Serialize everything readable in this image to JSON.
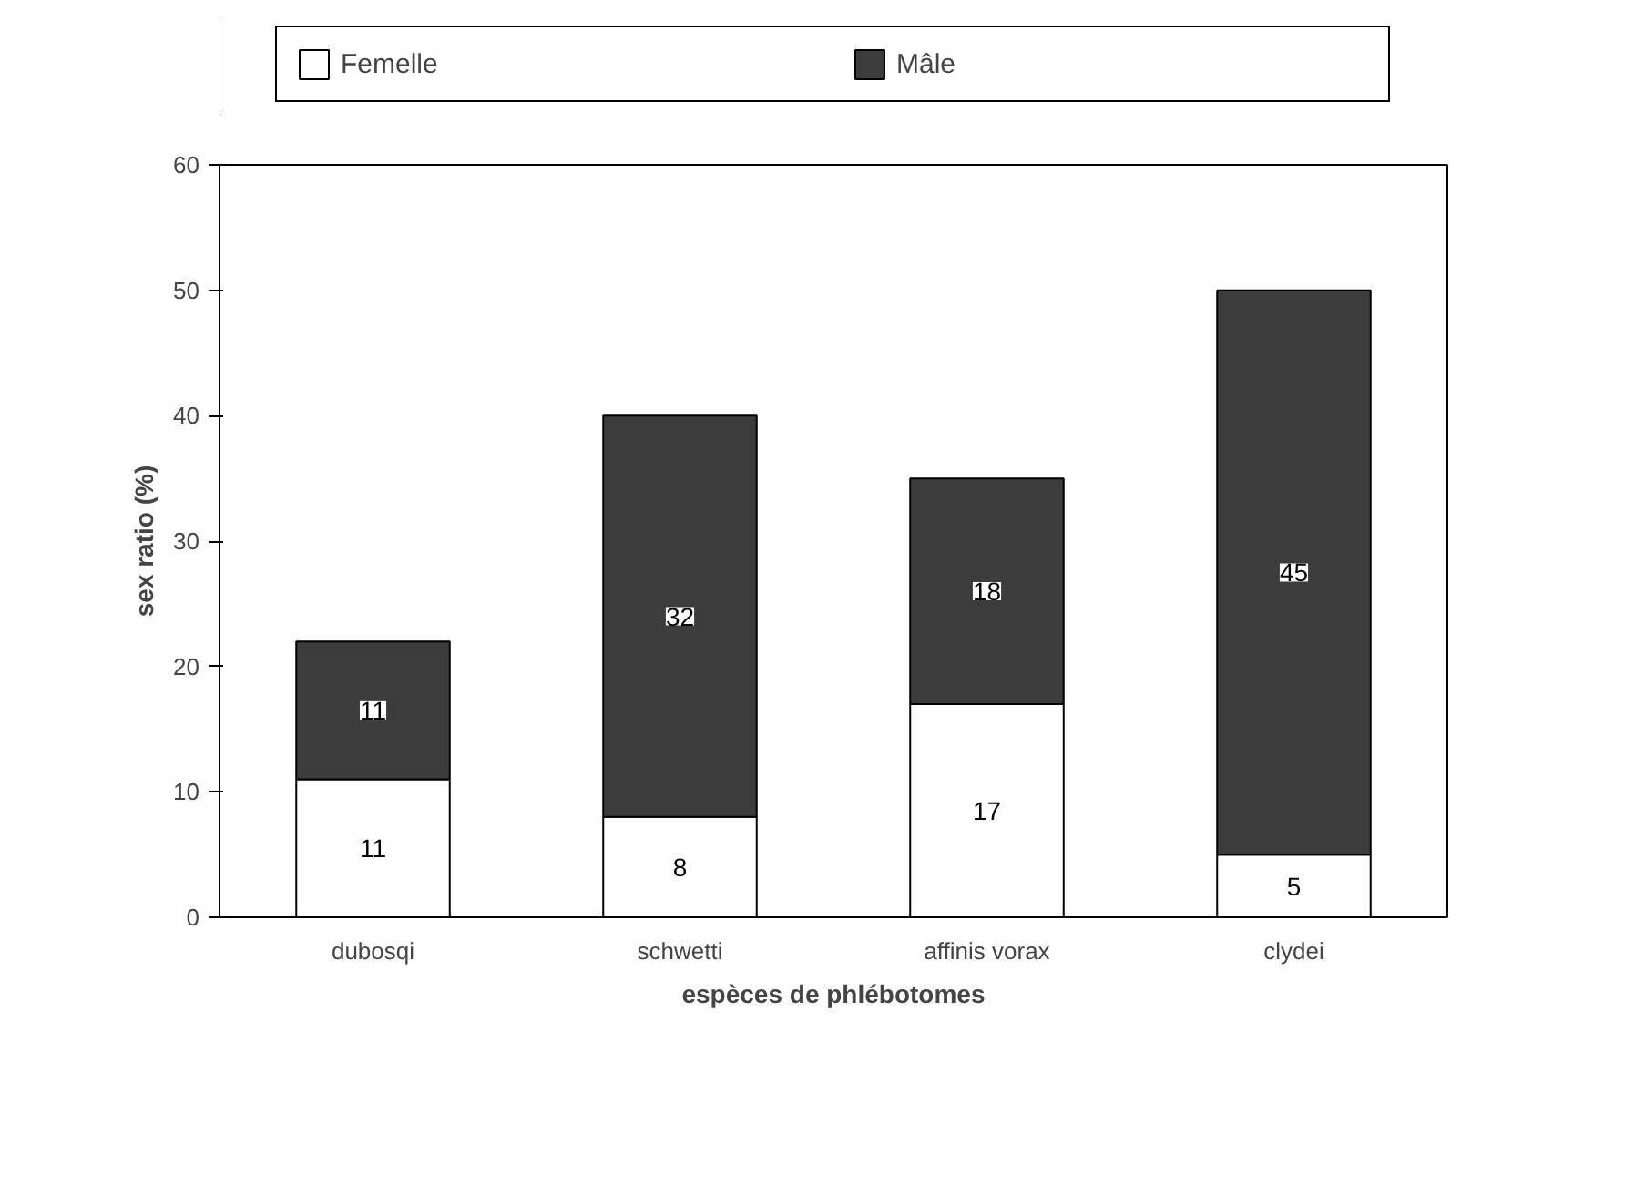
{
  "chart_data": {
    "type": "bar",
    "stacked": true,
    "xlabel": "espèces de phlébotomes",
    "ylabel": "sex ratio (%)",
    "categories": [
      "dubosqi",
      "schwetti",
      "affinis vorax",
      "clydei"
    ],
    "series": [
      {
        "name": "Femelle",
        "color": "#ffffff",
        "values": [
          11,
          8,
          17,
          5
        ]
      },
      {
        "name": "Mâle",
        "color": "#3c3c3c",
        "values": [
          11,
          32,
          18,
          45
        ]
      }
    ],
    "ylim": [
      0,
      60
    ],
    "yticks": [
      0,
      10,
      20,
      30,
      40,
      50,
      60
    ],
    "grid": false,
    "legend": "top",
    "data_labels": true
  }
}
